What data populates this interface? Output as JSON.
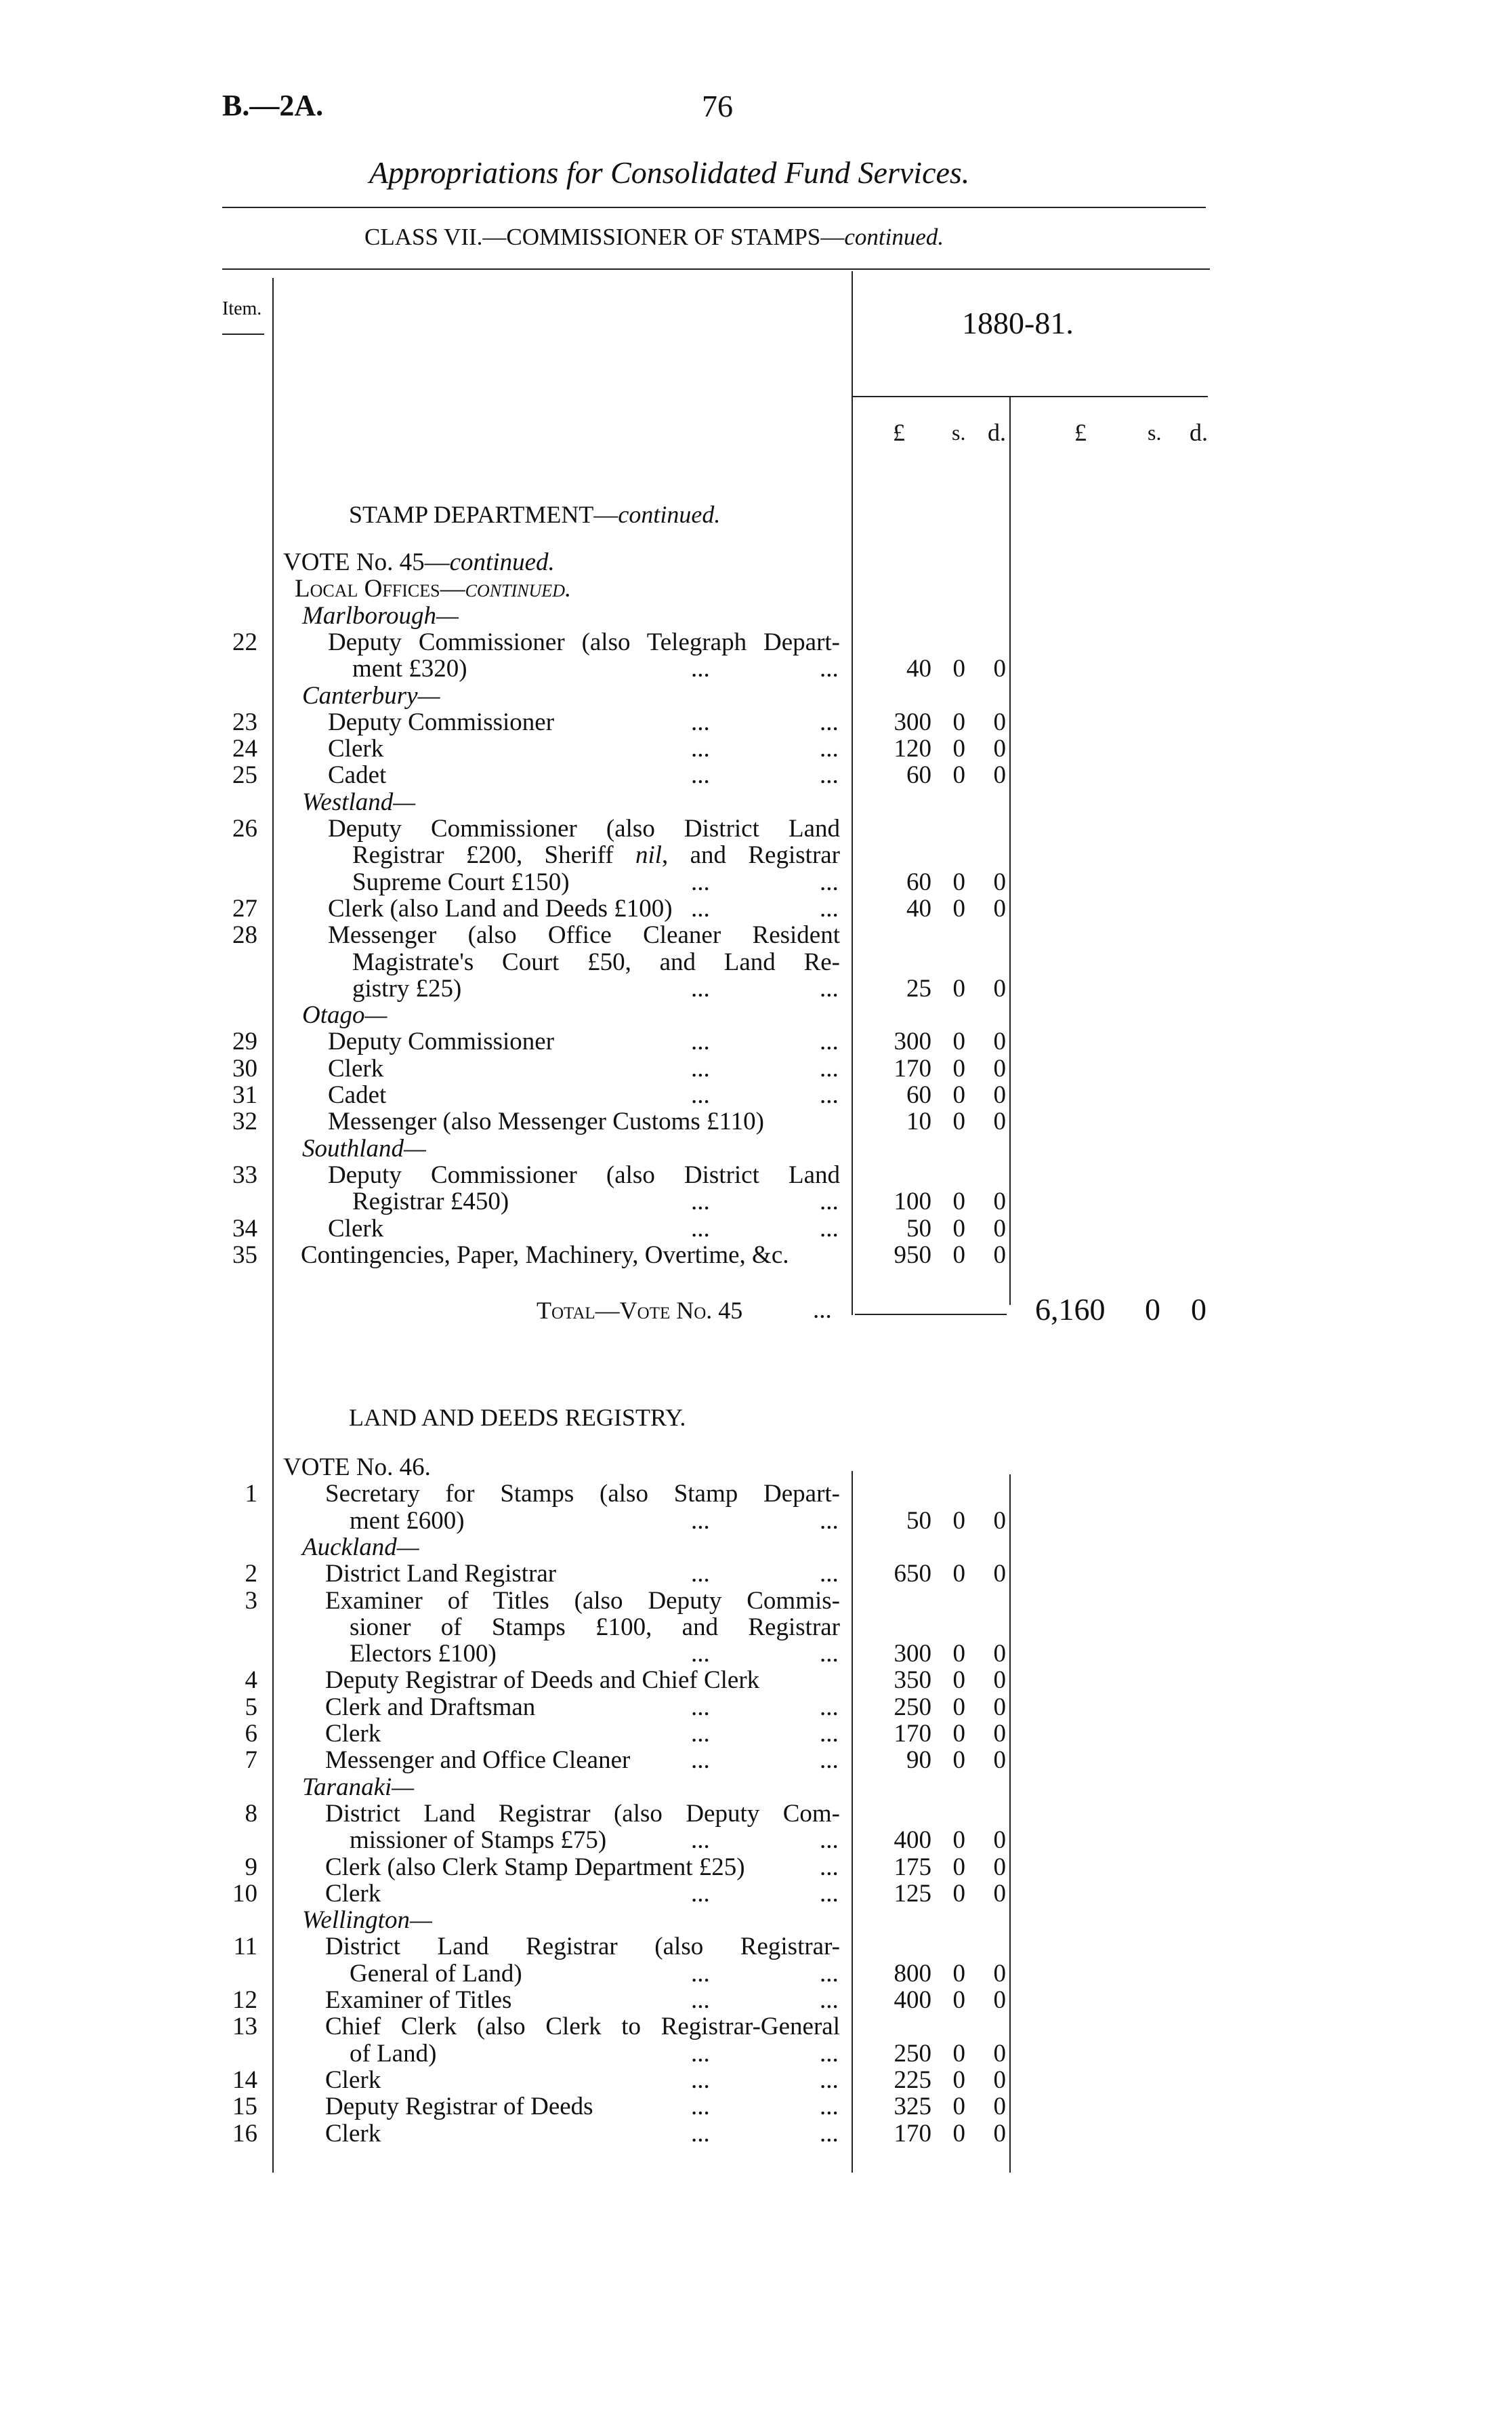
{
  "header": {
    "ref_prefix": "B.—2",
    "ref_suffix": "A.",
    "page_number": "76",
    "title": "Appropriations for Consolidated Fund Services.",
    "class_line": "CLASS VII.—COMMISSIONER OF STAMPS—",
    "class_line_cont": "continued."
  },
  "table_header": {
    "item": "Item.",
    "year": "1880-81.",
    "cols": [
      "£",
      "s.",
      "d.",
      "£",
      "s.",
      "d."
    ]
  },
  "sections": [
    {
      "heading": "STAMP DEPARTMENT—",
      "heading_cont": "continued.",
      "rows": [
        {
          "type": "vote",
          "text": "VOTE No. 45—",
          "cont": "continued."
        },
        {
          "type": "sub",
          "text": "Local Offices—",
          "cont": "continued."
        },
        {
          "type": "region",
          "text": "Marlborough—"
        },
        {
          "type": "item",
          "num": "22",
          "lines": [
            "Deputy Commissioner (also Telegraph Depart-",
            "ment £320)"
          ],
          "amount": [
            "40",
            "0",
            "0"
          ]
        },
        {
          "type": "region",
          "text": "Canterbury—"
        },
        {
          "type": "item",
          "num": "23",
          "lines": [
            "Deputy Commissioner"
          ],
          "amount": [
            "300",
            "0",
            "0"
          ]
        },
        {
          "type": "item",
          "num": "24",
          "lines": [
            "Clerk"
          ],
          "amount": [
            "120",
            "0",
            "0"
          ]
        },
        {
          "type": "item",
          "num": "25",
          "lines": [
            "Cadet"
          ],
          "amount": [
            "60",
            "0",
            "0"
          ]
        },
        {
          "type": "region",
          "text": "Westland—"
        },
        {
          "type": "item",
          "num": "26",
          "lines": [
            "Deputy Commissioner (also District Land",
            "Registrar £200, Sheriff nil, and Registrar",
            "Supreme Court £150)"
          ],
          "amount": [
            "60",
            "0",
            "0"
          ]
        },
        {
          "type": "item",
          "num": "27",
          "lines": [
            "Clerk (also Land and Deeds £100)"
          ],
          "amount": [
            "40",
            "0",
            "0"
          ]
        },
        {
          "type": "item",
          "num": "28",
          "lines": [
            "Messenger (also Office Cleaner Resident",
            "Magistrate's Court £50, and Land Re-",
            "gistry £25)"
          ],
          "amount": [
            "25",
            "0",
            "0"
          ]
        },
        {
          "type": "region",
          "text": "Otago—"
        },
        {
          "type": "item",
          "num": "29",
          "lines": [
            "Deputy Commissioner"
          ],
          "amount": [
            "300",
            "0",
            "0"
          ]
        },
        {
          "type": "item",
          "num": "30",
          "lines": [
            "Clerk"
          ],
          "amount": [
            "170",
            "0",
            "0"
          ]
        },
        {
          "type": "item",
          "num": "31",
          "lines": [
            "Cadet"
          ],
          "amount": [
            "60",
            "0",
            "0"
          ]
        },
        {
          "type": "item",
          "num": "32",
          "lines": [
            "Messenger (also Messenger Customs £110)"
          ],
          "amount": [
            "10",
            "0",
            "0"
          ],
          "nodots": true
        },
        {
          "type": "region",
          "text": "Southland—"
        },
        {
          "type": "item",
          "num": "33",
          "lines": [
            "Deputy Commissioner (also District Land",
            "Registrar £450)"
          ],
          "amount": [
            "100",
            "0",
            "0"
          ]
        },
        {
          "type": "item",
          "num": "34",
          "lines": [
            "Clerk"
          ],
          "amount": [
            "50",
            "0",
            "0"
          ]
        },
        {
          "type": "item",
          "num": "35",
          "lines": [
            "Contingencies, Paper, Machinery, Overtime, &c."
          ],
          "amount": [
            "950",
            "0",
            "0"
          ],
          "nodots": true,
          "outdent": true
        }
      ],
      "total": {
        "label": "Total—Vote No. 45",
        "dots": "...",
        "amount": [
          "6,160",
          "0",
          "0"
        ]
      }
    },
    {
      "heading": "LAND AND DEEDS REGISTRY.",
      "rows": [
        {
          "type": "vote",
          "text": "VOTE No. 46."
        },
        {
          "type": "item",
          "num": "1",
          "lines": [
            "Secretary for Stamps (also Stamp Depart-",
            "ment £600)"
          ],
          "amount": [
            "50",
            "0",
            "0"
          ]
        },
        {
          "type": "region",
          "text": "Auckland—"
        },
        {
          "type": "item",
          "num": "2",
          "lines": [
            "District Land Registrar"
          ],
          "amount": [
            "650",
            "0",
            "0"
          ]
        },
        {
          "type": "item",
          "num": "3",
          "lines": [
            "Examiner of Titles (also Deputy Commis-",
            "sioner of Stamps £100, and Registrar",
            "Electors £100)"
          ],
          "amount": [
            "300",
            "0",
            "0"
          ]
        },
        {
          "type": "item",
          "num": "4",
          "lines": [
            "Deputy Registrar of Deeds and Chief Clerk"
          ],
          "amount": [
            "350",
            "0",
            "0"
          ],
          "nodots": true
        },
        {
          "type": "item",
          "num": "5",
          "lines": [
            "Clerk and Draftsman"
          ],
          "amount": [
            "250",
            "0",
            "0"
          ]
        },
        {
          "type": "item",
          "num": "6",
          "lines": [
            "Clerk"
          ],
          "amount": [
            "170",
            "0",
            "0"
          ]
        },
        {
          "type": "item",
          "num": "7",
          "lines": [
            "Messenger and Office Cleaner"
          ],
          "amount": [
            "90",
            "0",
            "0"
          ]
        },
        {
          "type": "region",
          "text": "Taranaki—"
        },
        {
          "type": "item",
          "num": "8",
          "lines": [
            "District Land Registrar (also Deputy Com-",
            "missioner of Stamps £75)"
          ],
          "amount": [
            "400",
            "0",
            "0"
          ]
        },
        {
          "type": "item",
          "num": "9",
          "lines": [
            "Clerk (also Clerk Stamp Department £25)"
          ],
          "amount": [
            "175",
            "0",
            "0"
          ],
          "shortdots": true
        },
        {
          "type": "item",
          "num": "10",
          "lines": [
            "Clerk"
          ],
          "amount": [
            "125",
            "0",
            "0"
          ]
        },
        {
          "type": "region",
          "text": "Wellington—"
        },
        {
          "type": "item",
          "num": "11",
          "lines": [
            "District Land Registrar (also Registrar-",
            "General of Land)"
          ],
          "amount": [
            "800",
            "0",
            "0"
          ]
        },
        {
          "type": "item",
          "num": "12",
          "lines": [
            "Examiner of Titles"
          ],
          "amount": [
            "400",
            "0",
            "0"
          ]
        },
        {
          "type": "item",
          "num": "13",
          "lines": [
            "Chief Clerk (also Clerk to Registrar-General",
            "of Land)"
          ],
          "amount": [
            "250",
            "0",
            "0"
          ]
        },
        {
          "type": "item",
          "num": "14",
          "lines": [
            "Clerk"
          ],
          "amount": [
            "225",
            "0",
            "0"
          ]
        },
        {
          "type": "item",
          "num": "15",
          "lines": [
            "Deputy Registrar of Deeds"
          ],
          "amount": [
            "325",
            "0",
            "0"
          ]
        },
        {
          "type": "item",
          "num": "16",
          "lines": [
            "Clerk"
          ],
          "amount": [
            "170",
            "0",
            "0"
          ]
        }
      ]
    }
  ]
}
